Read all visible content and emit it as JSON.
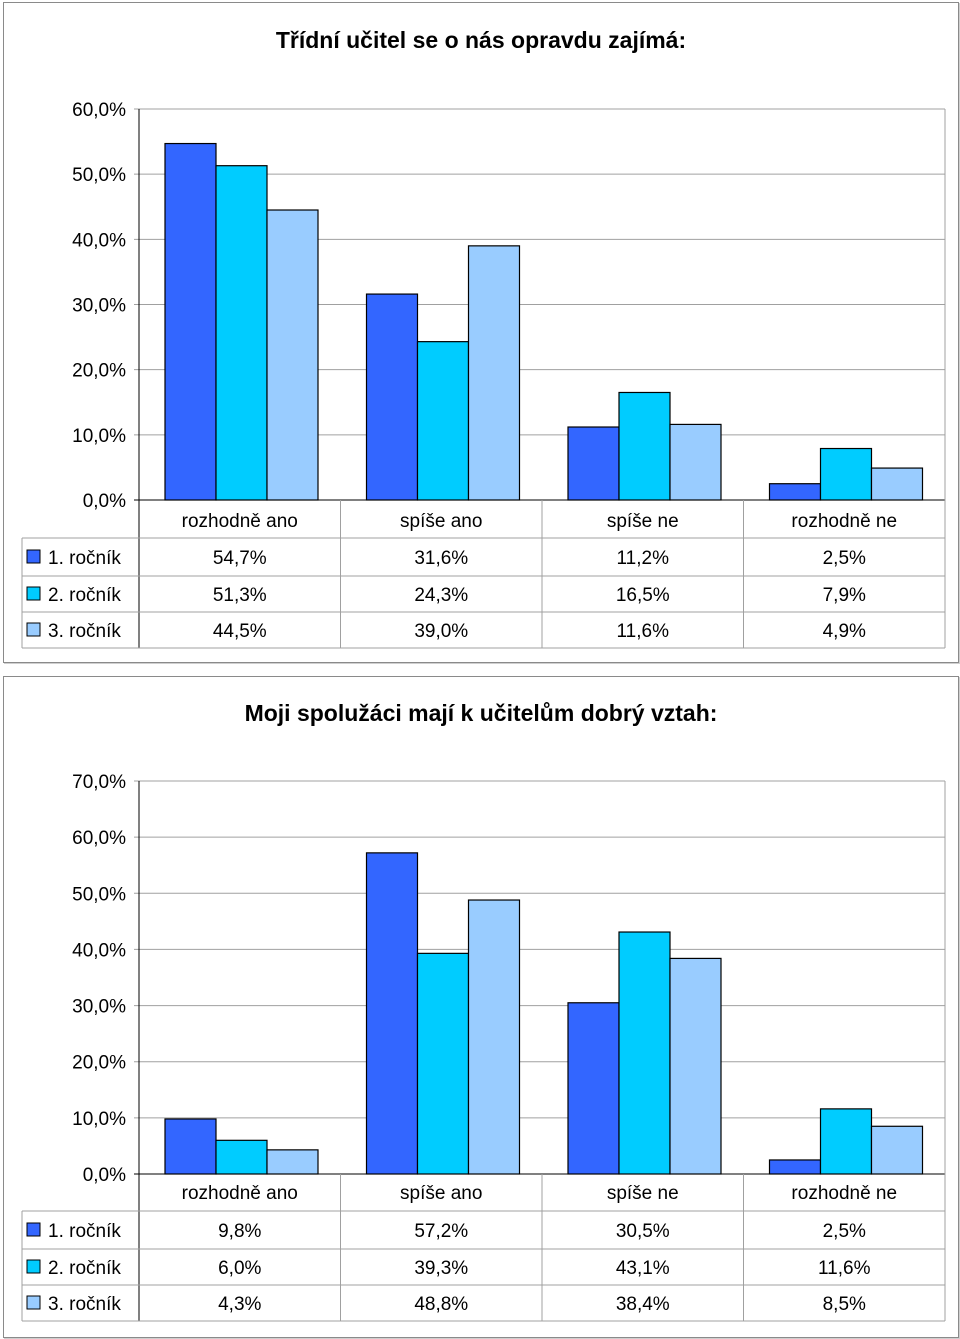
{
  "chart_data": [
    {
      "type": "bar",
      "title": "Třídní učitel se o nás opravdu zajímá:",
      "categories": [
        "rozhodně ano",
        "spíše ano",
        "spíše ne",
        "rozhodně ne"
      ],
      "series": [
        {
          "name": "1. ročník",
          "values": [
            54.7,
            31.6,
            11.2,
            2.5
          ],
          "labels": [
            "54,7%",
            "31,6%",
            "11,2%",
            "2,5%"
          ],
          "color": "#3366ff"
        },
        {
          "name": "2. ročník",
          "values": [
            51.3,
            24.3,
            16.5,
            7.9
          ],
          "labels": [
            "51,3%",
            "24,3%",
            "16,5%",
            "7,9%"
          ],
          "color": "#00ccff"
        },
        {
          "name": "3. ročník",
          "values": [
            44.5,
            39.0,
            11.6,
            4.9
          ],
          "labels": [
            "44,5%",
            "39,0%",
            "11,6%",
            "4,9%"
          ],
          "color": "#99ccff"
        }
      ],
      "ylim": [
        0,
        60
      ],
      "yticks": [
        "0,0%",
        "10,0%",
        "20,0%",
        "30,0%",
        "40,0%",
        "50,0%",
        "60,0%"
      ],
      "data_table": true,
      "grid": true
    },
    {
      "type": "bar",
      "title": "Moji spolužáci mají k učitelům dobrý vztah:",
      "categories": [
        "rozhodně ano",
        "spíše ano",
        "spíše ne",
        "rozhodně ne"
      ],
      "series": [
        {
          "name": "1. ročník",
          "values": [
            9.8,
            57.2,
            30.5,
            2.5
          ],
          "labels": [
            "9,8%",
            "57,2%",
            "30,5%",
            "2,5%"
          ],
          "color": "#3366ff"
        },
        {
          "name": "2. ročník",
          "values": [
            6.0,
            39.3,
            43.1,
            11.6
          ],
          "labels": [
            "6,0%",
            "39,3%",
            "43,1%",
            "11,6%"
          ],
          "color": "#00ccff"
        },
        {
          "name": "3. ročník",
          "values": [
            4.3,
            48.8,
            38.4,
            8.5
          ],
          "labels": [
            "4,3%",
            "48,8%",
            "38,4%",
            "8,5%"
          ],
          "color": "#99ccff"
        }
      ],
      "ylim": [
        0,
        70
      ],
      "yticks": [
        "0,0%",
        "10,0%",
        "20,0%",
        "30,0%",
        "40,0%",
        "50,0%",
        "60,0%",
        "70,0%"
      ],
      "data_table": true,
      "grid": true
    }
  ]
}
